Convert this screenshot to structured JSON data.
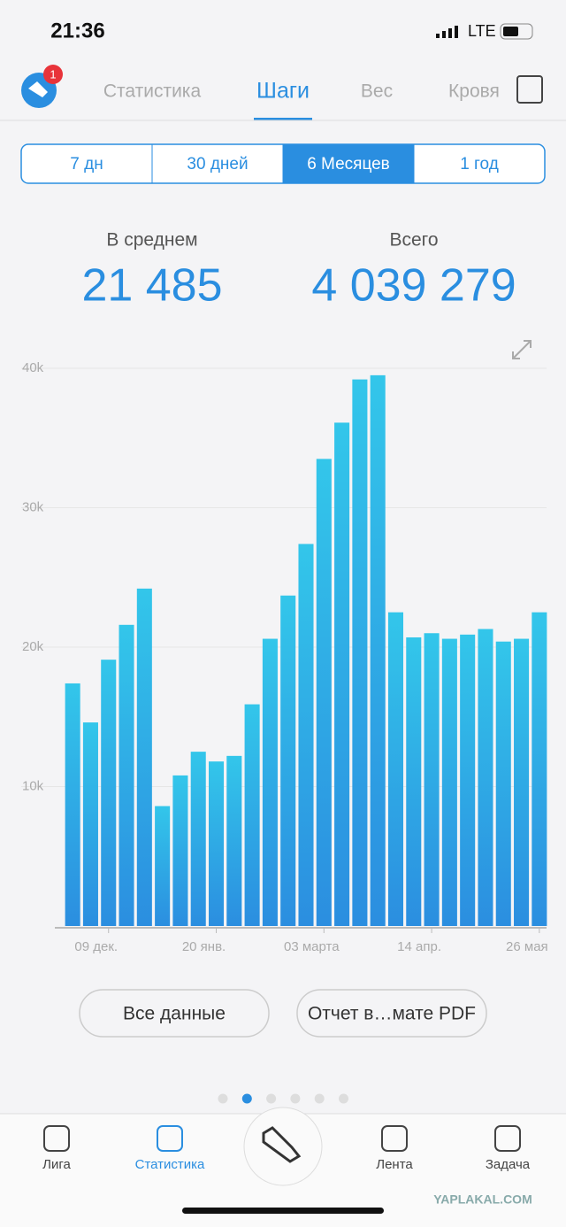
{
  "status_bar": {
    "time": "21:36",
    "network": "LTE"
  },
  "header": {
    "badge": "1",
    "tabs": [
      "Статистика",
      "Шаги",
      "Вес",
      "Кровя"
    ],
    "active_tab": 1
  },
  "periods": {
    "items": [
      "7 дн",
      "30 дней",
      "6 Месяцев",
      "1 год"
    ],
    "active": 2
  },
  "summary": {
    "average_label": "В среднем",
    "average_value": "21 485",
    "total_label": "Всего",
    "total_value": "4 039 279"
  },
  "chart_data": {
    "type": "bar",
    "categories": [
      null,
      null,
      "09 дек.",
      null,
      null,
      null,
      null,
      null,
      "20 янв.",
      null,
      null,
      null,
      null,
      null,
      "03 марта",
      null,
      null,
      null,
      null,
      null,
      "14 апр.",
      null,
      null,
      null,
      null,
      null,
      "26 мая"
    ],
    "values": [
      17400,
      14600,
      19100,
      21600,
      24200,
      8600,
      10800,
      12500,
      11800,
      12200,
      15900,
      20600,
      23700,
      27400,
      33500,
      36100,
      39200,
      39500,
      22500,
      20700,
      21000,
      20600,
      20900,
      21300,
      20400,
      20600,
      22500
    ],
    "ylim": [
      0,
      40000
    ],
    "yticks": [
      {
        "value": 10000,
        "label": "10k"
      },
      {
        "value": 20000,
        "label": "20k"
      },
      {
        "value": 30000,
        "label": "30k"
      },
      {
        "value": 40000,
        "label": "40k"
      }
    ],
    "grid": true,
    "color_top": "#33c6ea",
    "color_bottom": "#2b8ee0"
  },
  "buttons": [
    "Все данные",
    "Отчет в…мате PDF"
  ],
  "pager": {
    "count": 6,
    "active": 1
  },
  "nav": {
    "items": [
      "Лига",
      "Статистика",
      "Лента",
      "Задача"
    ],
    "active": 1
  },
  "watermark": "YAPLAKAL.COM"
}
